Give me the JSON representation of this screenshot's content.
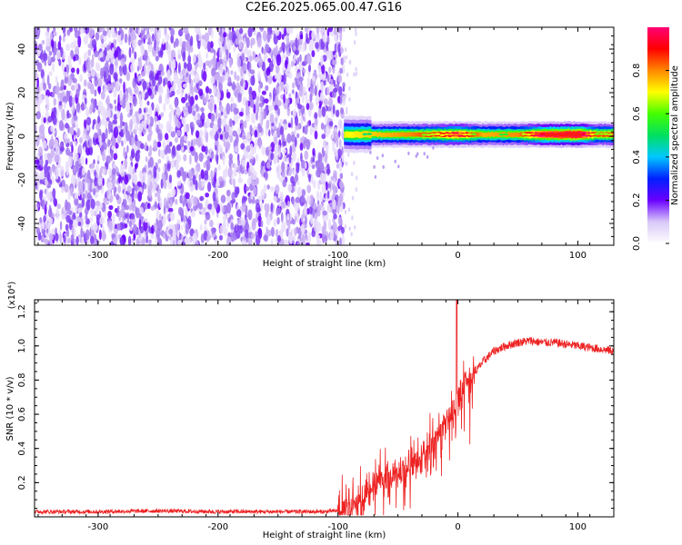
{
  "title": "C2E6.2025.065.00.47.G16",
  "chart_data": [
    {
      "type": "heatmap",
      "title": "C2E6.2025.065.00.47.G16",
      "xlabel": "Height of straight line (km)",
      "ylabel": "Frequency (Hz)",
      "xlim": [
        -353,
        130
      ],
      "ylim": [
        -50,
        50
      ],
      "xticks": [
        -300,
        -200,
        -100,
        0,
        100
      ],
      "yticks": [
        -40,
        -20,
        0,
        20,
        40
      ],
      "colorbar": {
        "label": "Normalized spectral amplitude",
        "range": [
          0.0,
          1.0
        ],
        "ticks": [
          0.0,
          0.2,
          0.4,
          0.6,
          0.8
        ],
        "colormap": "rainbow",
        "stops": [
          "#ffffff",
          "#d8c8f8",
          "#6a00ff",
          "#0020ff",
          "#00c8ff",
          "#00e060",
          "#44ff00",
          "#ffff00",
          "#ff8800",
          "#ff0000",
          "#ff0077"
        ]
      },
      "regions": [
        {
          "description": "broadband noise",
          "x": [
            -353,
            -95
          ],
          "y": [
            -50,
            50
          ],
          "amplitude": [
            0.0,
            0.15
          ]
        },
        {
          "description": "narrowband signal",
          "x": [
            -95,
            130
          ],
          "y": [
            -6,
            6
          ],
          "center_frequency": 0.8
        }
      ],
      "signal_profile": [
        {
          "x": -95,
          "amp": 0.35
        },
        {
          "x": -80,
          "amp": 0.4
        },
        {
          "x": -60,
          "amp": 0.45
        },
        {
          "x": -40,
          "amp": 0.5
        },
        {
          "x": -20,
          "amp": 0.6
        },
        {
          "x": 0,
          "amp": 0.75
        },
        {
          "x": 20,
          "amp": 0.45
        },
        {
          "x": 50,
          "amp": 0.5
        },
        {
          "x": 70,
          "amp": 0.85
        },
        {
          "x": 100,
          "amp": 1.0
        },
        {
          "x": 115,
          "amp": 0.55
        },
        {
          "x": 130,
          "amp": 0.6
        }
      ]
    },
    {
      "type": "line",
      "xlabel": "Height of straight line (km)",
      "ylabel": "SNR (10 * v/v)",
      "yscale_note": "(x10⁴)",
      "xlim": [
        -353,
        130
      ],
      "ylim": [
        0,
        1.27
      ],
      "xticks": [
        -300,
        -200,
        -100,
        0,
        100
      ],
      "yticks": [
        0.2,
        0.4,
        0.6,
        0.8,
        1.0,
        1.2
      ],
      "line_color": "#ee2222",
      "series": [
        {
          "x": [
            -353,
            -300,
            -250,
            -200,
            -150,
            -110,
            -95,
            -80,
            -70,
            -60,
            -50,
            -40,
            -30,
            -20,
            -10,
            -5,
            -2,
            0,
            5,
            10,
            20,
            30,
            40,
            50,
            60,
            70,
            80,
            90,
            100,
            110,
            120,
            130
          ],
          "values": [
            0.03,
            0.03,
            0.035,
            0.03,
            0.03,
            0.03,
            0.04,
            0.1,
            0.18,
            0.22,
            0.25,
            0.3,
            0.36,
            0.45,
            0.55,
            0.6,
            0.65,
            0.7,
            0.76,
            0.8,
            0.9,
            0.97,
            1.0,
            1.02,
            1.03,
            1.02,
            1.02,
            1.01,
            1.0,
            0.99,
            0.98,
            0.97
          ]
        }
      ],
      "annotations": [
        {
          "x": -1,
          "y": 1.27,
          "text": "spike"
        }
      ]
    }
  ]
}
